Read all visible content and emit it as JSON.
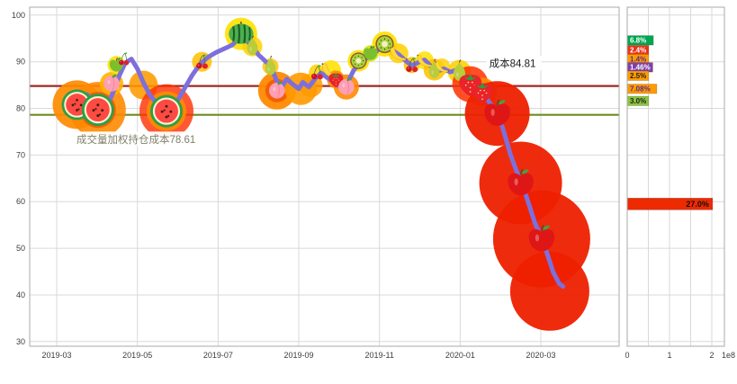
{
  "page": {
    "background": "#ffffff",
    "colors": {
      "price_line": "#7d6fdc",
      "cost_line": "#9e2b25",
      "vwap_line": "#6e8b1e",
      "grid": "#d9d9d9",
      "axis_text": "#3c3c3c",
      "border": "#aaaaaa"
    }
  },
  "chart_data": [
    {
      "type": "line",
      "title": "",
      "xlabel": "",
      "ylabel": "",
      "x_ticks": [
        {
          "pos": 1,
          "label": "2019-03"
        },
        {
          "pos": 3,
          "label": "2019-05"
        },
        {
          "pos": 5,
          "label": "2019-07"
        },
        {
          "pos": 7,
          "label": "2019-09"
        },
        {
          "pos": 9,
          "label": "2019-11"
        },
        {
          "pos": 11,
          "label": "2020-01"
        },
        {
          "pos": 13,
          "label": "2020-03"
        }
      ],
      "xlim": [
        0.33,
        14.94
      ],
      "y_ticks": [
        30,
        40,
        50,
        60,
        70,
        80,
        90,
        100
      ],
      "ylim": [
        29.0,
        101.7
      ],
      "grid": true,
      "series": [
        {
          "name": "price",
          "color": "#7d6fdc",
          "width": 5,
          "points": [
            [
              1.75,
              83.0
            ],
            [
              1.95,
              81.0
            ],
            [
              2.1,
              79.8
            ],
            [
              2.25,
              80.5
            ],
            [
              2.4,
              83.5
            ],
            [
              2.55,
              87.0
            ],
            [
              2.7,
              89.8
            ],
            [
              2.85,
              90.6
            ],
            [
              3.0,
              88.5
            ],
            [
              3.15,
              85.5
            ],
            [
              3.3,
              83.0
            ],
            [
              3.5,
              80.8
            ],
            [
              3.72,
              79.4
            ],
            [
              3.95,
              81.0
            ],
            [
              4.15,
              84.0
            ],
            [
              4.35,
              87.0
            ],
            [
              4.55,
              89.5
            ],
            [
              4.75,
              91.0
            ],
            [
              4.95,
              92.0
            ],
            [
              5.15,
              92.8
            ],
            [
              5.35,
              93.6
            ],
            [
              5.55,
              95.3
            ],
            [
              5.7,
              94.6
            ],
            [
              5.85,
              93.2
            ],
            [
              6.0,
              91.5
            ],
            [
              6.15,
              90.3
            ],
            [
              6.3,
              89.0
            ],
            [
              6.45,
              86.0
            ],
            [
              6.55,
              84.3
            ],
            [
              6.7,
              86.3
            ],
            [
              6.85,
              85.2
            ],
            [
              7.0,
              84.2
            ],
            [
              7.1,
              85.6
            ],
            [
              7.25,
              84.6
            ],
            [
              7.4,
              86.3
            ],
            [
              7.55,
              87.6
            ],
            [
              7.7,
              86.6
            ],
            [
              7.85,
              85.8
            ],
            [
              8.0,
              84.8
            ],
            [
              8.18,
              85.0
            ],
            [
              8.35,
              88.0
            ],
            [
              8.5,
              89.8
            ],
            [
              8.65,
              90.6
            ],
            [
              8.8,
              91.4
            ],
            [
              8.95,
              92.4
            ],
            [
              9.13,
              93.6
            ],
            [
              9.3,
              92.6
            ],
            [
              9.47,
              91.6
            ],
            [
              9.65,
              90.2
            ],
            [
              9.8,
              89.2
            ],
            [
              9.95,
              89.8
            ],
            [
              10.12,
              90.4
            ],
            [
              10.3,
              88.8
            ],
            [
              10.45,
              88.0
            ],
            [
              10.6,
              88.5
            ],
            [
              10.75,
              87.8
            ],
            [
              10.9,
              88.2
            ],
            [
              11.05,
              87.4
            ],
            [
              11.2,
              86.2
            ],
            [
              11.35,
              85.0
            ],
            [
              11.5,
              83.8
            ],
            [
              11.65,
              82.2
            ],
            [
              11.8,
              80.4
            ],
            [
              11.95,
              78.6
            ],
            [
              12.1,
              74.5
            ],
            [
              12.25,
              70.0
            ],
            [
              12.4,
              66.5
            ],
            [
              12.55,
              63.5
            ],
            [
              12.7,
              59.5
            ],
            [
              12.85,
              55.5
            ],
            [
              13.0,
              52.5
            ],
            [
              13.15,
              49.0
            ],
            [
              13.3,
              45.0
            ],
            [
              13.45,
              42.5
            ],
            [
              13.55,
              41.8
            ]
          ]
        }
      ],
      "hlines": [
        {
          "value": 84.81,
          "color": "#9e2b25",
          "width": 2.2,
          "label": "成本84.81",
          "label_color": "#1a1a1a",
          "label_size": 11.5,
          "label_m": 11.72,
          "label_p": 89.6
        },
        {
          "value": 78.61,
          "color": "#6e8b1e",
          "width": 2.2,
          "label": "成交量加权持仓成本78.61",
          "label_color": "#80806a",
          "label_size": 11.5,
          "label_m": 1.49,
          "label_p": 73.4
        }
      ],
      "fruit_markers": [
        {
          "type": "watermelon-slice",
          "m": 1.5,
          "p": 80.8,
          "s": 17,
          "halos": [
            [
              27,
              "#ff8a00",
              0.92
            ]
          ]
        },
        {
          "type": "watermelon-slice",
          "m": 2.02,
          "p": 79.7,
          "s": 18,
          "halos": [
            [
              31,
              "#ff8a00",
              0.9
            ],
            [
              20,
              "#f25805",
              0.85
            ]
          ]
        },
        {
          "type": "peach",
          "m": 2.36,
          "p": 85.3,
          "s": 10,
          "halos": [
            [
              13,
              "#ffb300",
              0.9
            ]
          ]
        },
        {
          "type": "green-apple",
          "m": 2.48,
          "p": 89.3,
          "s": 8,
          "halos": [
            [
              10,
              "#ffe000",
              0.85
            ]
          ]
        },
        {
          "type": "cherries",
          "m": 2.66,
          "p": 90.6,
          "s": 7,
          "halos": []
        },
        {
          "type": "halo",
          "m": 3.15,
          "p": 85.0,
          "s": 1,
          "halos": [
            [
              16,
              "#ff9a00",
              0.88
            ]
          ]
        },
        {
          "type": "watermelon-slice",
          "m": 3.72,
          "p": 79.4,
          "s": 18,
          "halos": [
            [
              30,
              "#ff3000",
              0.8
            ],
            [
              22,
              "#ff8a00",
              0.95
            ]
          ]
        },
        {
          "type": "cherries",
          "m": 4.6,
          "p": 90.0,
          "s": 8,
          "halos": [
            [
              11,
              "#ffc000",
              0.85
            ]
          ]
        },
        {
          "type": "whole-watermelon",
          "m": 5.57,
          "p": 96.0,
          "s": 14,
          "halos": [
            [
              18,
              "#ffe000",
              0.9
            ],
            [
              11,
              "#86c800",
              0.88
            ]
          ]
        },
        {
          "type": "pear",
          "m": 5.85,
          "p": 93.3,
          "s": 10,
          "halos": [
            [
              11,
              "#ffd000",
              0.85
            ]
          ]
        },
        {
          "type": "pear",
          "m": 6.3,
          "p": 89.0,
          "s": 10,
          "halos": [
            [
              9,
              "#ffc000",
              0.8
            ]
          ]
        },
        {
          "type": "peach",
          "m": 6.46,
          "p": 83.8,
          "s": 10,
          "halos": [
            [
              21,
              "#ff8a00",
              0.95
            ],
            [
              13,
              "#f25805",
              0.88
            ]
          ]
        },
        {
          "type": "halo",
          "m": 7.05,
          "p": 84.2,
          "s": 1,
          "halos": [
            [
              18,
              "#ff9a00",
              0.9
            ]
          ]
        },
        {
          "type": "halo",
          "m": 7.3,
          "p": 84.9,
          "s": 1,
          "halos": [
            [
              13,
              "#ff9a00",
              0.85
            ]
          ]
        },
        {
          "type": "cherries",
          "m": 7.45,
          "p": 87.7,
          "s": 8,
          "halos": [
            [
              9,
              "#ffd000",
              0.85
            ]
          ]
        },
        {
          "type": "banana",
          "m": 7.8,
          "p": 88.2,
          "s": 11,
          "halos": [
            [
              11,
              "#ffe000",
              0.88
            ]
          ]
        },
        {
          "type": "strawberry",
          "m": 7.92,
          "p": 86.2,
          "s": 9,
          "halos": [
            [
              10,
              "#ff8a00",
              0.88
            ]
          ]
        },
        {
          "type": "peach",
          "m": 8.18,
          "p": 84.6,
          "s": 10,
          "halos": [
            [
              14,
              "#ff8a00",
              0.9
            ]
          ]
        },
        {
          "type": "kiwi",
          "m": 8.48,
          "p": 90.2,
          "s": 10,
          "halos": [
            [
              12,
              "#ffe000",
              0.9
            ]
          ]
        },
        {
          "type": "green-apple",
          "m": 8.78,
          "p": 91.8,
          "s": 8,
          "halos": [
            [
              9,
              "#c8e600",
              0.88
            ]
          ]
        },
        {
          "type": "kiwi",
          "m": 9.13,
          "p": 93.8,
          "s": 11,
          "halos": [
            [
              14,
              "#ffe000",
              0.92
            ],
            [
              8,
              "#8fd400",
              0.88
            ]
          ]
        },
        {
          "type": "banana",
          "m": 9.47,
          "p": 91.8,
          "s": 10,
          "halos": [
            [
              11,
              "#ffd000",
              0.85
            ]
          ]
        },
        {
          "type": "cherries",
          "m": 9.8,
          "p": 89.3,
          "s": 8,
          "halos": [
            [
              9,
              "#ffc000",
              0.85
            ]
          ]
        },
        {
          "type": "banana",
          "m": 10.12,
          "p": 90.3,
          "s": 9,
          "halos": [
            [
              10,
              "#ffe000",
              0.85
            ]
          ]
        },
        {
          "type": "pear",
          "m": 10.36,
          "p": 88.3,
          "s": 10,
          "halos": [
            [
              12,
              "#ffc000",
              0.85
            ]
          ]
        },
        {
          "type": "banana",
          "m": 10.55,
          "p": 89.0,
          "s": 8,
          "halos": [
            [
              9,
              "#ffd000",
              0.8
            ]
          ]
        },
        {
          "type": "pear",
          "m": 10.98,
          "p": 87.9,
          "s": 11,
          "halos": [
            [
              13,
              "#ffd000",
              0.88
            ]
          ]
        },
        {
          "type": "strawberry",
          "m": 11.25,
          "p": 85.2,
          "s": 14,
          "halos": [
            [
              20,
              "#ff3000",
              0.85
            ]
          ]
        },
        {
          "type": "strawberry",
          "m": 11.55,
          "p": 83.5,
          "s": 13,
          "halos": [
            [
              16,
              "#ff8a00",
              0.9
            ]
          ]
        },
        {
          "type": "apple",
          "m": 11.92,
          "p": 78.9,
          "s": 15,
          "halos": [
            [
              36,
              "#ee2000",
              0.95
            ]
          ]
        },
        {
          "type": "apple",
          "m": 12.5,
          "p": 64.0,
          "s": 15,
          "halos": [
            [
              46,
              "#ee2000",
              0.95
            ]
          ]
        },
        {
          "type": "apple",
          "m": 13.02,
          "p": 52.0,
          "s": 15,
          "halos": [
            [
              54,
              "#ee2000",
              0.95
            ]
          ]
        },
        {
          "type": "halo",
          "m": 13.22,
          "p": 40.8,
          "s": 1,
          "halos": [
            [
              44,
              "#ee2000",
              0.95
            ]
          ]
        }
      ]
    },
    {
      "type": "bar",
      "orientation": "horizontal",
      "x_ticks": [
        {
          "value": 0,
          "label": "0"
        },
        {
          "value": 1,
          "label": "1"
        },
        {
          "value": 2,
          "label": "2"
        }
      ],
      "x_scale_label": "1e8",
      "xlim": [
        0,
        2.3
      ],
      "x_unit": "1e8",
      "grid_values": [
        0,
        0.5,
        1,
        1.5,
        2
      ],
      "ylim": [
        29.0,
        101.7
      ],
      "bars": [
        {
          "label": "6.8%",
          "price": 94.6,
          "value": 0.62,
          "color": "#00a650",
          "label_color": "#ffffff"
        },
        {
          "label": "2.4%",
          "price": 92.5,
          "value": 0.4,
          "color": "#e53517",
          "label_color": "#ffffff"
        },
        {
          "label": "1.4%",
          "price": 90.6,
          "value": 0.26,
          "color": "#ff9a00",
          "label_color": "#5b2d8e"
        },
        {
          "label": "1.46%",
          "price": 88.8,
          "value": 0.28,
          "color": "#8040a8",
          "label_color": "#ffffff"
        },
        {
          "label": "2.5%",
          "price": 87.0,
          "value": 0.33,
          "color": "#ff9a00",
          "label_color": "#222222"
        },
        {
          "label": "7.08%",
          "price": 84.2,
          "value": 0.7,
          "color": "#ff9a00",
          "label_color": "#5b2d8e"
        },
        {
          "label": "3.0%",
          "price": 81.6,
          "value": 0.38,
          "color": "#8bc53f",
          "label_color": "#222222"
        },
        {
          "label": "27.0%",
          "price": 59.5,
          "value": 2.02,
          "color": "#ee2a00",
          "label_color": "#111111",
          "big": true
        }
      ]
    }
  ]
}
